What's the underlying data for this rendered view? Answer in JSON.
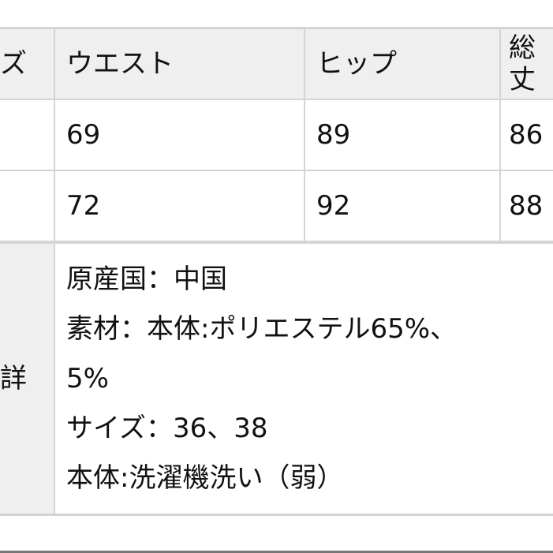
{
  "header": {
    "size": "ズ",
    "waist": "ウエスト",
    "hip": "ヒップ",
    "length": "総丈"
  },
  "rows": [
    {
      "waist": "69",
      "hip": "89",
      "length": "86"
    },
    {
      "waist": "72",
      "hip": "92",
      "length": "88"
    }
  ],
  "detail": {
    "label": "詳",
    "lines": [
      "原産国：中国",
      "素材：本体:ポリエステル65%、",
      "5%",
      "サイズ：36、38",
      "本体:洗濯機洗い（弱）"
    ]
  }
}
